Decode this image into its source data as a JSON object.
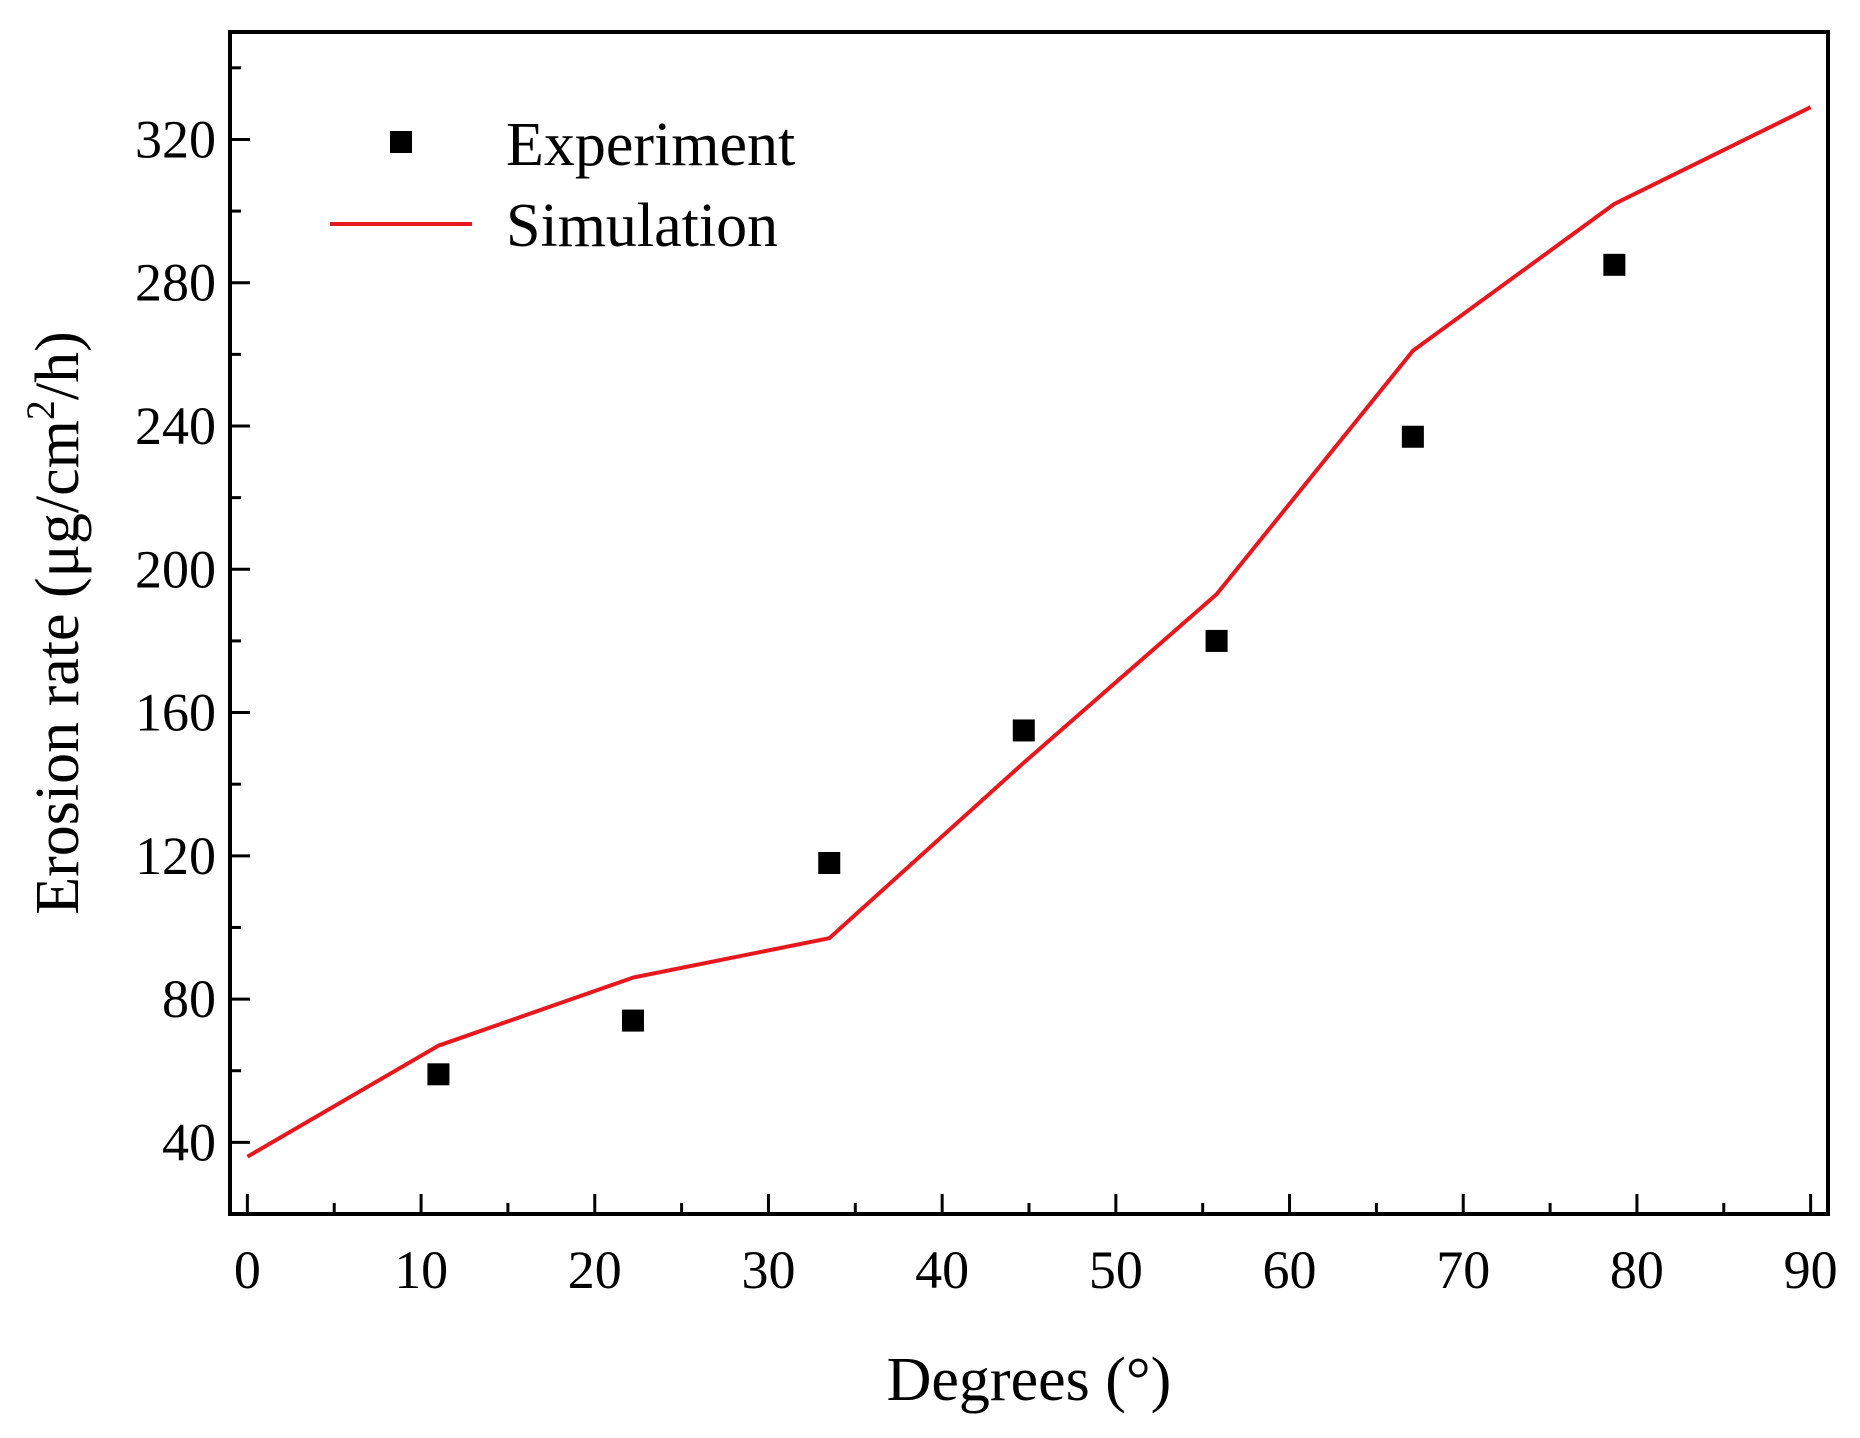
{
  "chart_data": {
    "type": "scatter+line",
    "title": "",
    "xlabel": "Degrees (°)",
    "ylabel_prefix": "Erosion rate (μg/cm",
    "ylabel_sup": "2",
    "ylabel_suffix": "/h)",
    "xlim": [
      -1,
      91
    ],
    "ylim": [
      20,
      350
    ],
    "x_ticks": [
      0,
      10,
      20,
      30,
      40,
      50,
      60,
      70,
      80,
      90
    ],
    "x_tick_labels": [
      "0",
      "10",
      "20",
      "30",
      "40",
      "50",
      "60",
      "70",
      "80",
      "90"
    ],
    "x_minor_ticks": [
      5,
      15,
      25,
      35,
      45,
      55,
      65,
      75,
      85
    ],
    "y_ticks": [
      40,
      80,
      120,
      160,
      200,
      240,
      280,
      320
    ],
    "y_tick_labels": [
      "40",
      "80",
      "120",
      "160",
      "200",
      "240",
      "280",
      "320"
    ],
    "y_minor_ticks": [
      20,
      60,
      100,
      140,
      180,
      220,
      260,
      300,
      340
    ],
    "grid": false,
    "legend_position": "top-left",
    "series": [
      {
        "name": "Experiment",
        "kind": "scatter",
        "marker": "square",
        "color": "#000000",
        "x": [
          11,
          22.2,
          33.5,
          44.7,
          55.8,
          67.1,
          78.7
        ],
        "y": [
          59,
          74,
          118,
          155,
          180,
          237,
          285
        ]
      },
      {
        "name": "Simulation",
        "kind": "line",
        "color": "#e8171d",
        "x": [
          0,
          11,
          22.2,
          33.5,
          44.7,
          55.8,
          67.1,
          78.7,
          90
        ],
        "y": [
          36,
          67,
          86,
          97,
          146,
          193,
          261,
          302,
          329
        ]
      }
    ]
  }
}
